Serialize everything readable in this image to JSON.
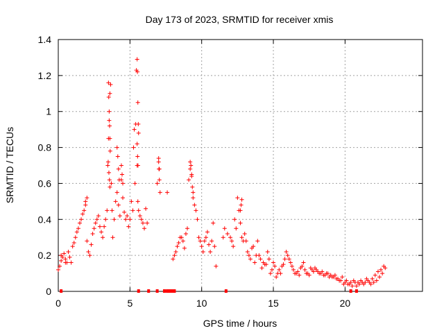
{
  "chart_data": {
    "type": "scatter",
    "title": "Day 173 of 2023, SRMTID for receiver xmis",
    "xlabel": "GPS time / hours",
    "ylabel": "SRMTID / TECUs",
    "xlim": [
      0,
      25.4
    ],
    "ylim": [
      0,
      1.4
    ],
    "x_ticks": [
      0,
      5,
      10,
      15,
      20
    ],
    "x_tick_labels": [
      "0",
      "5",
      "10",
      "15",
      "20"
    ],
    "y_ticks": [
      0,
      0.2,
      0.4,
      0.6,
      0.8,
      1.0,
      1.2,
      1.4
    ],
    "y_tick_labels": [
      "0",
      "0.2",
      "0.4",
      "0.6",
      "0.8",
      "1",
      "1.2",
      "1.4"
    ],
    "grid": true,
    "marker": "+",
    "color": "#ff0000",
    "series": [
      {
        "name": "SRMTID",
        "x": [
          0.0,
          0.2,
          0.4,
          0.6,
          0.8,
          1.0,
          1.2,
          1.4,
          1.6,
          1.8,
          2.0,
          2.2,
          2.4,
          2.6,
          2.8,
          3.0,
          3.2,
          3.4,
          3.5,
          3.6,
          3.7,
          3.8,
          4.0,
          4.2,
          4.4,
          4.6,
          4.8,
          5.0,
          5.2,
          5.3,
          5.4,
          5.5,
          5.6,
          5.8,
          6.0,
          7.0,
          7.1,
          7.6,
          8.0,
          8.2,
          8.4,
          8.6,
          8.8,
          9.0,
          9.2,
          9.4,
          9.6,
          9.8,
          10.0,
          10.2,
          10.4,
          10.6,
          10.8,
          11.0,
          11.5,
          12.0,
          12.2,
          12.4,
          12.6,
          12.8,
          13.0,
          13.2,
          13.4,
          13.6,
          13.8,
          14.0,
          14.2,
          14.4,
          14.6,
          14.8,
          15.0,
          15.2,
          15.4,
          15.6,
          15.8,
          16.0,
          16.2,
          16.4,
          16.6,
          16.8,
          17.0,
          17.2,
          17.4,
          17.6,
          17.8,
          18.0,
          18.2,
          18.4,
          18.6,
          18.8,
          19.0,
          19.2,
          19.4,
          19.6,
          19.8,
          20.0,
          20.2,
          20.4,
          20.6,
          20.8,
          21.0,
          21.2,
          21.4,
          21.6,
          21.8,
          22.0,
          22.2,
          22.4,
          22.6,
          22.8,
          0.1,
          0.3,
          0.5,
          0.7,
          0.9,
          1.1,
          1.3,
          1.5,
          1.7,
          1.9,
          2.1,
          2.3,
          2.5,
          2.7,
          2.9,
          3.1,
          3.3,
          3.45,
          3.55,
          3.65,
          3.75,
          3.9,
          4.1,
          4.3,
          4.5,
          4.7,
          4.9,
          5.1,
          5.25,
          5.35,
          5.45,
          5.55,
          5.7,
          5.9,
          6.9,
          7.05,
          8.1,
          8.3,
          8.5,
          8.7,
          8.9,
          9.1,
          9.3,
          9.5,
          9.7,
          9.9,
          10.1,
          10.3,
          10.5,
          10.7,
          10.9,
          11.6,
          11.8,
          12.1,
          12.3,
          12.5,
          12.7,
          12.9,
          13.1,
          13.3,
          13.5,
          13.7,
          13.9,
          14.1,
          14.3,
          14.5,
          14.7,
          14.9,
          15.1,
          15.3,
          15.5,
          15.7,
          15.9,
          16.1,
          16.3,
          16.5,
          16.7,
          16.9,
          17.1,
          17.3,
          17.5,
          17.7,
          17.9,
          18.1,
          18.3,
          18.5,
          18.7,
          18.9,
          19.1,
          19.3,
          19.5,
          19.7,
          19.9,
          20.1,
          20.3,
          20.5,
          20.7,
          20.9,
          21.1,
          21.3,
          21.5,
          21.7,
          21.9,
          22.1,
          22.3,
          22.5,
          22.7,
          3.5,
          3.52,
          3.55,
          3.58,
          3.6,
          3.62,
          3.48,
          3.53,
          3.57,
          3.6,
          5.5,
          5.52,
          5.55,
          5.58,
          5.6,
          5.5,
          5.53,
          5.56,
          4.1,
          4.15,
          4.2,
          4.25,
          9.2,
          9.25,
          9.3,
          9.35,
          9.4,
          7.0,
          7.02,
          7.05,
          12.7,
          12.75,
          12.8,
          4.4,
          4.45,
          4.5,
          0.2,
          0.5,
          1.9,
          2.0,
          6.1,
          6.2
        ],
        "y": [
          0.12,
          0.17,
          0.21,
          0.16,
          0.19,
          0.25,
          0.3,
          0.35,
          0.4,
          0.45,
          0.28,
          0.2,
          0.32,
          0.38,
          0.42,
          0.33,
          0.36,
          0.45,
          0.85,
          1.1,
          0.6,
          0.3,
          0.5,
          0.48,
          0.62,
          0.44,
          0.42,
          0.4,
          0.45,
          0.9,
          0.93,
          0.7,
          0.45,
          0.4,
          0.35,
          0.72,
          0.55,
          0.55,
          0.18,
          0.22,
          0.27,
          0.3,
          0.24,
          0.35,
          0.68,
          0.55,
          0.45,
          0.3,
          0.25,
          0.28,
          0.33,
          0.22,
          0.38,
          0.14,
          0.3,
          0.3,
          0.25,
          0.35,
          0.45,
          0.3,
          0.32,
          0.22,
          0.18,
          0.25,
          0.2,
          0.2,
          0.13,
          0.15,
          0.22,
          0.1,
          0.16,
          0.08,
          0.12,
          0.14,
          0.18,
          0.2,
          0.16,
          0.12,
          0.1,
          0.09,
          0.14,
          0.12,
          0.1,
          0.13,
          0.11,
          0.12,
          0.1,
          0.11,
          0.09,
          0.1,
          0.09,
          0.08,
          0.07,
          0.06,
          0.08,
          0.05,
          0.04,
          0.05,
          0.06,
          0.03,
          0.04,
          0.05,
          0.05,
          0.06,
          0.04,
          0.05,
          0.06,
          0.08,
          0.1,
          0.13,
          0.14,
          0.19,
          0.18,
          0.22,
          0.16,
          0.27,
          0.33,
          0.38,
          0.43,
          0.48,
          0.22,
          0.26,
          0.35,
          0.4,
          0.36,
          0.3,
          0.4,
          0.7,
          0.95,
          1.15,
          0.45,
          0.4,
          0.55,
          0.42,
          0.52,
          0.4,
          0.36,
          0.5,
          0.8,
          0.6,
          1.23,
          0.5,
          0.42,
          0.38,
          0.6,
          0.68,
          0.2,
          0.25,
          0.3,
          0.28,
          0.32,
          0.62,
          0.65,
          0.48,
          0.4,
          0.28,
          0.22,
          0.3,
          0.26,
          0.28,
          0.25,
          0.35,
          0.32,
          0.28,
          0.4,
          0.52,
          0.38,
          0.28,
          0.28,
          0.2,
          0.24,
          0.16,
          0.28,
          0.18,
          0.16,
          0.15,
          0.18,
          0.12,
          0.14,
          0.1,
          0.1,
          0.15,
          0.22,
          0.18,
          0.14,
          0.1,
          0.11,
          0.13,
          0.16,
          0.1,
          0.09,
          0.12,
          0.13,
          0.11,
          0.1,
          0.09,
          0.1,
          0.08,
          0.08,
          0.09,
          0.07,
          0.06,
          0.04,
          0.06,
          0.04,
          0.03,
          0.05,
          0.05,
          0.06,
          0.04,
          0.07,
          0.05,
          0.07,
          0.09,
          0.11,
          0.12,
          0.14,
          1.16,
          1.08,
          1.0,
          0.92,
          0.85,
          0.78,
          0.72,
          0.66,
          0.62,
          0.58,
          1.29,
          1.22,
          1.05,
          0.93,
          0.88,
          0.82,
          0.75,
          0.7,
          0.8,
          0.75,
          0.68,
          0.62,
          0.72,
          0.7,
          0.64,
          0.58,
          0.52,
          0.74,
          0.68,
          0.62,
          0.45,
          0.48,
          0.51,
          0.7,
          0.65,
          0.6,
          0.2,
          0.16,
          0.5,
          0.52,
          0.46,
          0.38
        ]
      }
    ],
    "markers_at_zero_x": [
      0.2,
      5.6,
      6.3,
      6.9,
      7.4,
      7.6,
      7.7,
      7.8,
      7.9,
      8.0,
      8.1,
      11.7,
      20.4,
      20.8
    ]
  }
}
